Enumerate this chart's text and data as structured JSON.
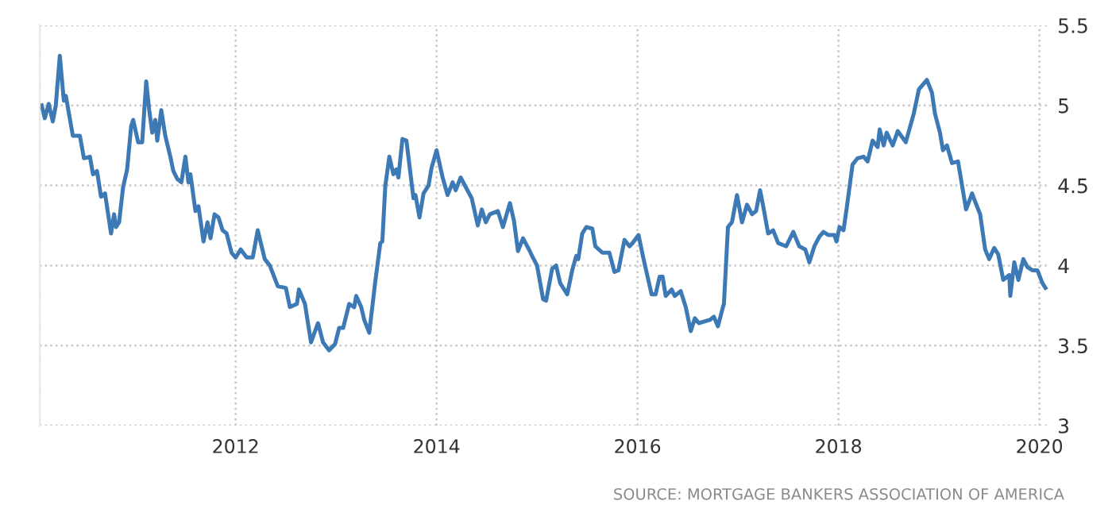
{
  "chart_data": {
    "type": "line",
    "grid": true,
    "line_style": "solid",
    "marker": "none",
    "xlim": [
      2010.05,
      2020.09
    ],
    "xticks": [
      {
        "value": 2010.05,
        "label": null
      },
      2012,
      2014,
      2016,
      2018,
      2020
    ],
    "ylim": [
      3,
      5.5
    ],
    "yticks": [
      3,
      3.5,
      4,
      4.5,
      5,
      5.5
    ],
    "annotations": [
      "SOURCE: MORTGAGE BANKERS ASSOCIATION OF AMERICA"
    ],
    "series": [
      {
        "color": "#3d7ab5",
        "x": [
          2010.07,
          2010.1,
          2010.14,
          2010.18,
          2010.21,
          2010.25,
          2010.29,
          2010.31,
          2010.38,
          2010.45,
          2010.49,
          2010.55,
          2010.58,
          2010.62,
          2010.66,
          2010.7,
          2010.76,
          2010.79,
          2010.81,
          2010.84,
          2010.88,
          2010.92,
          2010.96,
          2010.98,
          2011.03,
          2011.07,
          2011.11,
          2011.14,
          2011.17,
          2011.2,
          2011.22,
          2011.26,
          2011.3,
          2011.35,
          2011.38,
          2011.42,
          2011.46,
          2011.5,
          2011.53,
          2011.55,
          2011.6,
          2011.63,
          2011.68,
          2011.72,
          2011.75,
          2011.79,
          2011.83,
          2011.87,
          2011.91,
          2011.96,
          2012.0,
          2012.05,
          2012.11,
          2012.17,
          2012.22,
          2012.29,
          2012.34,
          2012.42,
          2012.5,
          2012.54,
          2012.61,
          2012.63,
          2012.69,
          2012.75,
          2012.82,
          2012.87,
          2012.93,
          2012.99,
          2013.03,
          2013.07,
          2013.13,
          2013.18,
          2013.2,
          2013.25,
          2013.28,
          2013.33,
          2013.39,
          2013.44,
          2013.46,
          2013.49,
          2013.53,
          2013.57,
          2013.6,
          2013.62,
          2013.66,
          2013.7,
          2013.77,
          2013.79,
          2013.83,
          2013.87,
          2013.92,
          2013.95,
          2014.0,
          2014.06,
          2014.11,
          2014.16,
          2014.19,
          2014.24,
          2014.29,
          2014.35,
          2014.41,
          2014.45,
          2014.49,
          2014.53,
          2014.61,
          2014.66,
          2014.73,
          2014.77,
          2014.81,
          2014.86,
          2014.92,
          2014.95,
          2015.0,
          2015.06,
          2015.09,
          2015.15,
          2015.19,
          2015.23,
          2015.3,
          2015.35,
          2015.39,
          2015.41,
          2015.45,
          2015.49,
          2015.55,
          2015.58,
          2015.65,
          2015.72,
          2015.77,
          2015.81,
          2015.87,
          2015.92,
          2015.95,
          2016.01,
          2016.06,
          2016.14,
          2016.18,
          2016.22,
          2016.25,
          2016.28,
          2016.34,
          2016.37,
          2016.43,
          2016.48,
          2016.53,
          2016.57,
          2016.61,
          2016.72,
          2016.76,
          2016.8,
          2016.85,
          2016.86,
          2016.9,
          2016.94,
          2016.99,
          2017.04,
          2017.09,
          2017.14,
          2017.18,
          2017.22,
          2017.26,
          2017.3,
          2017.35,
          2017.4,
          2017.48,
          2017.55,
          2017.61,
          2017.67,
          2017.71,
          2017.76,
          2017.81,
          2017.85,
          2017.9,
          2017.96,
          2017.98,
          2018.01,
          2018.05,
          2018.08,
          2018.14,
          2018.19,
          2018.25,
          2018.29,
          2018.34,
          2018.39,
          2018.41,
          2018.45,
          2018.48,
          2018.54,
          2018.59,
          2018.67,
          2018.75,
          2018.8,
          2018.88,
          2018.93,
          2018.96,
          2019.01,
          2019.04,
          2019.08,
          2019.13,
          2019.19,
          2019.27,
          2019.33,
          2019.36,
          2019.41,
          2019.46,
          2019.5,
          2019.55,
          2019.59,
          2019.64,
          2019.7,
          2019.71,
          2019.75,
          2019.79,
          2019.84,
          2019.88,
          2019.93,
          2019.98,
          2020.03,
          2020.06
        ],
        "values": [
          5.0,
          4.92,
          5.01,
          4.9,
          5.0,
          5.31,
          5.03,
          5.06,
          4.81,
          4.81,
          4.67,
          4.68,
          4.57,
          4.59,
          4.43,
          4.45,
          4.2,
          4.32,
          4.24,
          4.27,
          4.49,
          4.6,
          4.87,
          4.91,
          4.77,
          4.77,
          5.15,
          4.97,
          4.83,
          4.91,
          4.78,
          4.97,
          4.81,
          4.68,
          4.59,
          4.54,
          4.52,
          4.68,
          4.52,
          4.57,
          4.34,
          4.37,
          4.15,
          4.27,
          4.17,
          4.32,
          4.3,
          4.22,
          4.2,
          4.08,
          4.05,
          4.1,
          4.05,
          4.05,
          4.22,
          4.04,
          4.0,
          3.87,
          3.86,
          3.74,
          3.76,
          3.85,
          3.76,
          3.52,
          3.64,
          3.52,
          3.47,
          3.51,
          3.61,
          3.61,
          3.76,
          3.74,
          3.81,
          3.74,
          3.66,
          3.58,
          3.9,
          4.14,
          4.15,
          4.5,
          4.68,
          4.57,
          4.6,
          4.55,
          4.79,
          4.78,
          4.42,
          4.44,
          4.3,
          4.45,
          4.5,
          4.61,
          4.72,
          4.55,
          4.44,
          4.52,
          4.47,
          4.55,
          4.49,
          4.42,
          4.25,
          4.35,
          4.27,
          4.32,
          4.34,
          4.24,
          4.39,
          4.28,
          4.09,
          4.17,
          4.1,
          4.06,
          4.0,
          3.79,
          3.78,
          3.98,
          4.0,
          3.89,
          3.82,
          3.97,
          4.06,
          4.04,
          4.2,
          4.24,
          4.23,
          4.12,
          4.08,
          4.08,
          3.96,
          3.97,
          4.16,
          4.12,
          4.14,
          4.19,
          4.04,
          3.82,
          3.82,
          3.93,
          3.93,
          3.81,
          3.85,
          3.81,
          3.84,
          3.74,
          3.59,
          3.67,
          3.64,
          3.66,
          3.68,
          3.62,
          3.74,
          3.76,
          4.24,
          4.27,
          4.44,
          4.27,
          4.38,
          4.32,
          4.34,
          4.47,
          4.34,
          4.2,
          4.22,
          4.14,
          4.12,
          4.21,
          4.12,
          4.1,
          4.02,
          4.12,
          4.18,
          4.21,
          4.19,
          4.19,
          4.15,
          4.24,
          4.22,
          4.35,
          4.63,
          4.67,
          4.68,
          4.65,
          4.78,
          4.74,
          4.85,
          4.75,
          4.83,
          4.75,
          4.84,
          4.77,
          4.95,
          5.1,
          5.16,
          5.08,
          4.95,
          4.83,
          4.72,
          4.75,
          4.64,
          4.65,
          4.35,
          4.45,
          4.4,
          4.32,
          4.1,
          4.04,
          4.11,
          4.07,
          3.91,
          3.94,
          3.81,
          4.02,
          3.91,
          4.04,
          3.99,
          3.97,
          3.97,
          3.89,
          3.86
        ]
      }
    ]
  }
}
